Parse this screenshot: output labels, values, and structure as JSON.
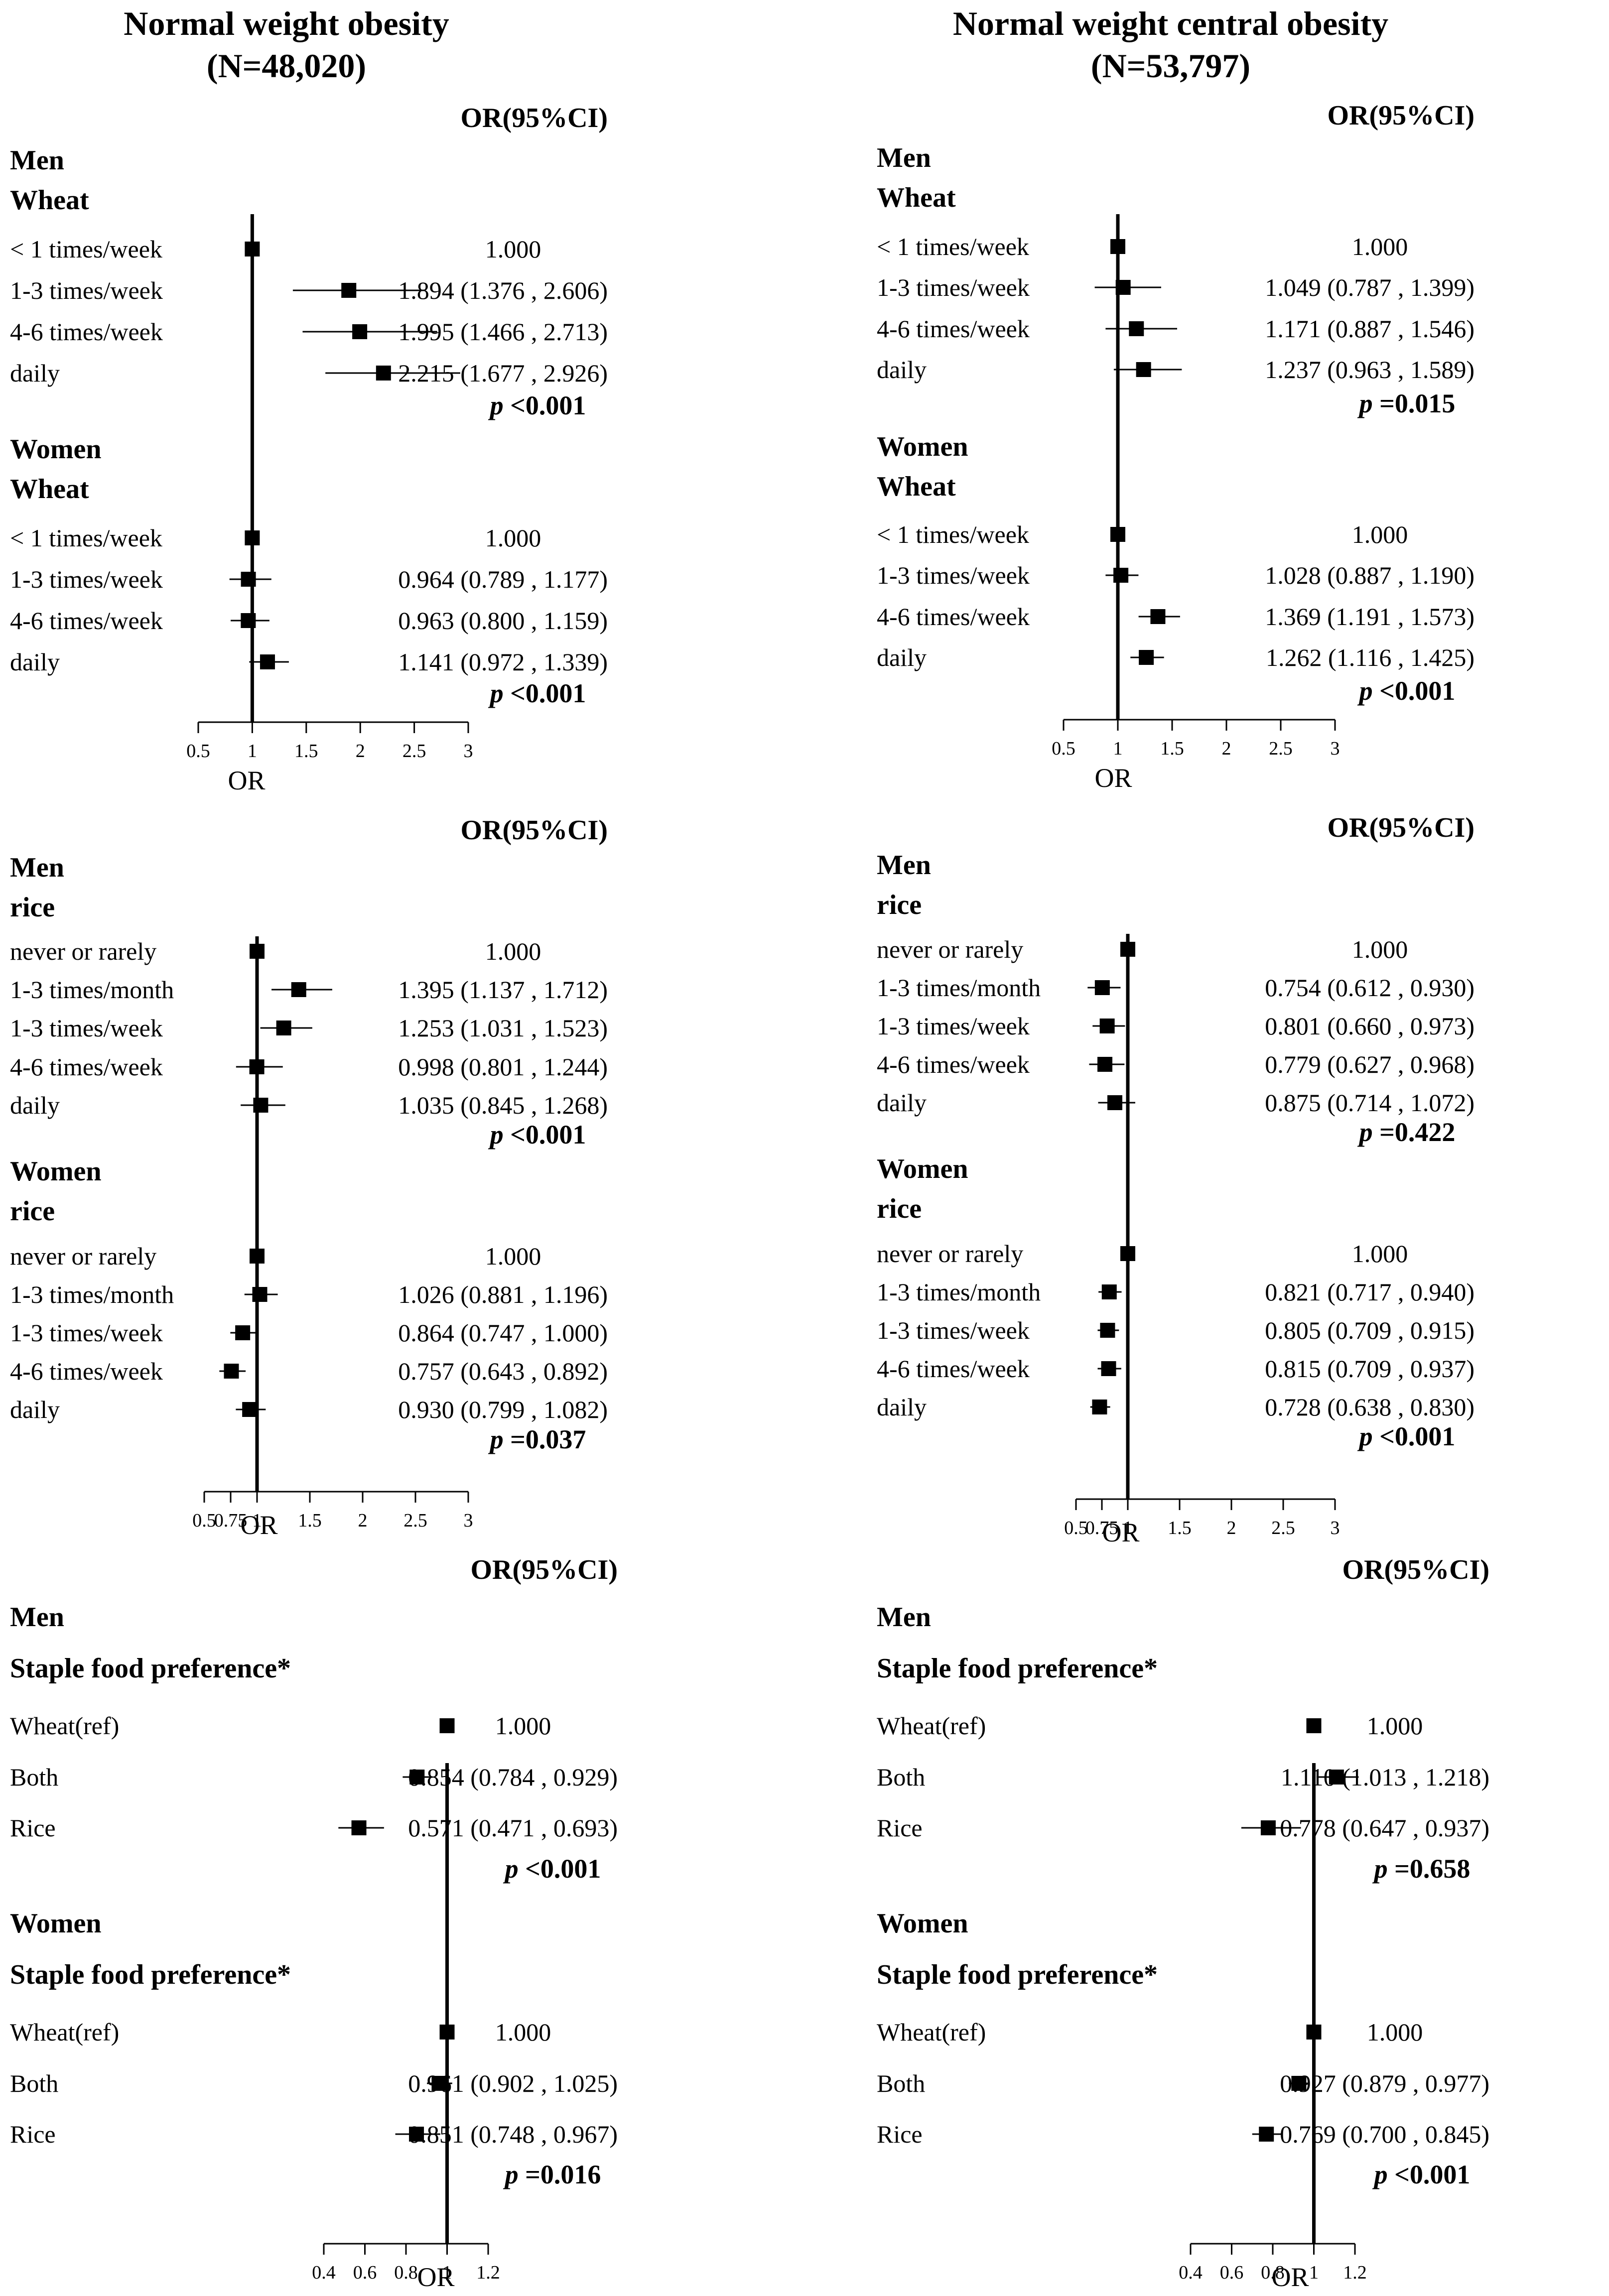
{
  "figure": {
    "columns": [
      {
        "title": "Normal weight obesity",
        "n": "(N=48,020)"
      },
      {
        "title": "Normal weight central obesity",
        "n": "(N=53,797)"
      }
    ],
    "or_header": "OR(95%CI)",
    "axis_label": "OR",
    "p_prefix": "p"
  },
  "chart_data": [
    {
      "type": "forest",
      "id": "wheat_nwo",
      "column": 0,
      "ylim": null,
      "xlim": [
        0.5,
        3
      ],
      "ticks": [
        "0.5",
        "1",
        "1.5",
        "2",
        "2.5",
        "3"
      ],
      "groups": [
        {
          "sex": "Men",
          "food": "Wheat",
          "p": "<0.001",
          "rows": [
            {
              "label": "< 1 times/week",
              "or": 1.0,
              "lo": 1.0,
              "hi": 1.0,
              "text": "1.000"
            },
            {
              "label": "1-3 times/week",
              "or": 1.894,
              "lo": 1.376,
              "hi": 2.606,
              "text": "1.894 (1.376 , 2.606)"
            },
            {
              "label": "4-6 times/week",
              "or": 1.995,
              "lo": 1.466,
              "hi": 2.713,
              "text": "1.995 (1.466 , 2.713)"
            },
            {
              "label": "daily",
              "or": 2.215,
              "lo": 1.677,
              "hi": 2.926,
              "text": "2.215 (1.677 , 2.926)"
            }
          ]
        },
        {
          "sex": "Women",
          "food": "Wheat",
          "p": "<0.001",
          "rows": [
            {
              "label": "< 1 times/week",
              "or": 1.0,
              "lo": 1.0,
              "hi": 1.0,
              "text": "1.000"
            },
            {
              "label": "1-3 times/week",
              "or": 0.964,
              "lo": 0.789,
              "hi": 1.177,
              "text": "0.964 (0.789 , 1.177)"
            },
            {
              "label": "4-6 times/week",
              "or": 0.963,
              "lo": 0.8,
              "hi": 1.159,
              "text": "0.963 (0.800 , 1.159)"
            },
            {
              "label": "daily",
              "or": 1.141,
              "lo": 0.972,
              "hi": 1.339,
              "text": "1.141 (0.972 , 1.339)"
            }
          ]
        }
      ]
    },
    {
      "type": "forest",
      "id": "wheat_nwco",
      "column": 1,
      "xlim": [
        0.5,
        3
      ],
      "ticks": [
        "0.5",
        "1",
        "1.5",
        "2",
        "2.5",
        "3"
      ],
      "groups": [
        {
          "sex": "Men",
          "food": "Wheat",
          "p": "=0.015",
          "rows": [
            {
              "label": "< 1 times/week",
              "or": 1.0,
              "lo": 1.0,
              "hi": 1.0,
              "text": "1.000"
            },
            {
              "label": "1-3 times/week",
              "or": 1.049,
              "lo": 0.787,
              "hi": 1.399,
              "text": "1.049 (0.787 , 1.399)"
            },
            {
              "label": "4-6 times/week",
              "or": 1.171,
              "lo": 0.887,
              "hi": 1.546,
              "text": "1.171 (0.887 , 1.546)"
            },
            {
              "label": "daily",
              "or": 1.237,
              "lo": 0.963,
              "hi": 1.589,
              "text": "1.237 (0.963 , 1.589)"
            }
          ]
        },
        {
          "sex": "Women",
          "food": "Wheat",
          "p": "<0.001",
          "rows": [
            {
              "label": "< 1 times/week",
              "or": 1.0,
              "lo": 1.0,
              "hi": 1.0,
              "text": "1.000"
            },
            {
              "label": "1-3 times/week",
              "or": 1.028,
              "lo": 0.887,
              "hi": 1.19,
              "text": "1.028 (0.887 , 1.190)"
            },
            {
              "label": "4-6 times/week",
              "or": 1.369,
              "lo": 1.191,
              "hi": 1.573,
              "text": "1.369 (1.191 , 1.573)"
            },
            {
              "label": "daily",
              "or": 1.262,
              "lo": 1.116,
              "hi": 1.425,
              "text": "1.262 (1.116 , 1.425)"
            }
          ]
        }
      ]
    },
    {
      "type": "forest",
      "id": "rice_nwo",
      "column": 0,
      "xlim": [
        0.5,
        3
      ],
      "ticks": [
        "0.5",
        "0.75",
        "1",
        "1.5",
        "2",
        "2.5",
        "3"
      ],
      "groups": [
        {
          "sex": "Men",
          "food": "rice",
          "p": "<0.001",
          "rows": [
            {
              "label": "never or rarely",
              "or": 1.0,
              "lo": 1.0,
              "hi": 1.0,
              "text": "1.000"
            },
            {
              "label": "1-3 times/month",
              "or": 1.395,
              "lo": 1.137,
              "hi": 1.712,
              "text": "1.395 (1.137 , 1.712)"
            },
            {
              "label": "1-3 times/week",
              "or": 1.253,
              "lo": 1.031,
              "hi": 1.523,
              "text": "1.253 (1.031 , 1.523)"
            },
            {
              "label": "4-6 times/week",
              "or": 0.998,
              "lo": 0.801,
              "hi": 1.244,
              "text": "0.998 (0.801 , 1.244)"
            },
            {
              "label": "daily",
              "or": 1.035,
              "lo": 0.845,
              "hi": 1.268,
              "text": "1.035 (0.845 , 1.268)"
            }
          ]
        },
        {
          "sex": "Women",
          "food": "rice",
          "p": "=0.037",
          "rows": [
            {
              "label": "never or rarely",
              "or": 1.0,
              "lo": 1.0,
              "hi": 1.0,
              "text": "1.000"
            },
            {
              "label": "1-3 times/month",
              "or": 1.026,
              "lo": 0.881,
              "hi": 1.196,
              "text": "1.026 (0.881 , 1.196)"
            },
            {
              "label": "1-3 times/week",
              "or": 0.864,
              "lo": 0.747,
              "hi": 1.0,
              "text": "0.864 (0.747 , 1.000)"
            },
            {
              "label": "4-6 times/week",
              "or": 0.757,
              "lo": 0.643,
              "hi": 0.892,
              "text": "0.757 (0.643 , 0.892)"
            },
            {
              "label": "daily",
              "or": 0.93,
              "lo": 0.799,
              "hi": 1.082,
              "text": "0.930 (0.799 , 1.082)"
            }
          ]
        }
      ]
    },
    {
      "type": "forest",
      "id": "rice_nwco",
      "column": 1,
      "xlim": [
        0.5,
        3
      ],
      "ticks": [
        "0.5",
        "0.75",
        "1",
        "1.5",
        "2",
        "2.5",
        "3"
      ],
      "groups": [
        {
          "sex": "Men",
          "food": "rice",
          "p": "=0.422",
          "rows": [
            {
              "label": "never or rarely",
              "or": 1.0,
              "lo": 1.0,
              "hi": 1.0,
              "text": "1.000"
            },
            {
              "label": "1-3 times/month",
              "or": 0.754,
              "lo": 0.612,
              "hi": 0.93,
              "text": "0.754 (0.612 , 0.930)"
            },
            {
              "label": "1-3 times/week",
              "or": 0.801,
              "lo": 0.66,
              "hi": 0.973,
              "text": "0.801 (0.660 , 0.973)"
            },
            {
              "label": "4-6 times/week",
              "or": 0.779,
              "lo": 0.627,
              "hi": 0.968,
              "text": "0.779 (0.627 , 0.968)"
            },
            {
              "label": "daily",
              "or": 0.875,
              "lo": 0.714,
              "hi": 1.072,
              "text": "0.875 (0.714 , 1.072)"
            }
          ]
        },
        {
          "sex": "Women",
          "food": "rice",
          "p": "<0.001",
          "rows": [
            {
              "label": "never or rarely",
              "or": 1.0,
              "lo": 1.0,
              "hi": 1.0,
              "text": "1.000"
            },
            {
              "label": "1-3 times/month",
              "or": 0.821,
              "lo": 0.717,
              "hi": 0.94,
              "text": "0.821 (0.717 , 0.940)"
            },
            {
              "label": "1-3 times/week",
              "or": 0.805,
              "lo": 0.709,
              "hi": 0.915,
              "text": "0.805 (0.709 , 0.915)"
            },
            {
              "label": "4-6 times/week",
              "or": 0.815,
              "lo": 0.709,
              "hi": 0.937,
              "text": "0.815 (0.709 , 0.937)"
            },
            {
              "label": "daily",
              "or": 0.728,
              "lo": 0.638,
              "hi": 0.83,
              "text": "0.728 (0.638 , 0.830)"
            }
          ]
        }
      ]
    },
    {
      "type": "forest",
      "id": "staple_nwo",
      "column": 0,
      "xlim": [
        0.4,
        1.2
      ],
      "ticks": [
        "0.4",
        "0.6",
        "0.8",
        "1",
        "1.2"
      ],
      "groups": [
        {
          "sex": "Men",
          "food": "Staple food preference*",
          "p": "<0.001",
          "rows": [
            {
              "label": "Wheat(ref)",
              "or": 1.0,
              "lo": 1.0,
              "hi": 1.0,
              "text": "1.000"
            },
            {
              "label": "Both",
              "or": 0.854,
              "lo": 0.784,
              "hi": 0.929,
              "text": "0.854 (0.784 , 0.929)"
            },
            {
              "label": "Rice",
              "or": 0.571,
              "lo": 0.471,
              "hi": 0.693,
              "text": "0.571 (0.471 , 0.693)"
            }
          ]
        },
        {
          "sex": "Women",
          "food": "Staple food preference*",
          "p": "=0.016",
          "rows": [
            {
              "label": "Wheat(ref)",
              "or": 1.0,
              "lo": 1.0,
              "hi": 1.0,
              "text": "1.000"
            },
            {
              "label": "Both",
              "or": 0.961,
              "lo": 0.902,
              "hi": 1.025,
              "text": "0.961 (0.902 , 1.025)"
            },
            {
              "label": "Rice",
              "or": 0.851,
              "lo": 0.748,
              "hi": 0.967,
              "text": "0.851 (0.748 , 0.967)"
            }
          ]
        }
      ]
    },
    {
      "type": "forest",
      "id": "staple_nwco",
      "column": 1,
      "xlim": [
        0.4,
        1.2
      ],
      "ticks": [
        "0.4",
        "0.6",
        "0.8",
        "1",
        "1.2"
      ],
      "groups": [
        {
          "sex": "Men",
          "food": "Staple food preference*",
          "p": "=0.658",
          "rows": [
            {
              "label": "Wheat(ref)",
              "or": 1.0,
              "lo": 1.0,
              "hi": 1.0,
              "text": "1.000"
            },
            {
              "label": "Both",
              "or": 1.11,
              "lo": 1.013,
              "hi": 1.218,
              "text": "1.110 (1.013 , 1.218)"
            },
            {
              "label": "Rice",
              "or": 0.778,
              "lo": 0.647,
              "hi": 0.937,
              "text": "0.778 (0.647 , 0.937)"
            }
          ]
        },
        {
          "sex": "Women",
          "food": "Staple food preference*",
          "p": "<0.001",
          "rows": [
            {
              "label": "Wheat(ref)",
              "or": 1.0,
              "lo": 1.0,
              "hi": 1.0,
              "text": "1.000"
            },
            {
              "label": "Both",
              "or": 0.927,
              "lo": 0.879,
              "hi": 0.977,
              "text": "0.927 (0.879 , 0.977)"
            },
            {
              "label": "Rice",
              "or": 0.769,
              "lo": 0.7,
              "hi": 0.845,
              "text": "0.769 (0.700 , 0.845)"
            }
          ]
        }
      ]
    }
  ]
}
